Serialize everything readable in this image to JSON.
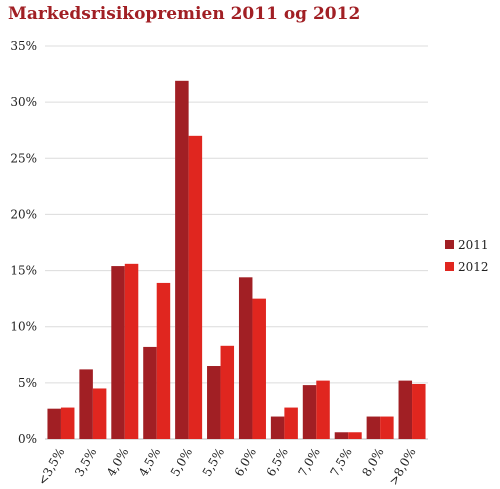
{
  "chart_data": {
    "type": "bar",
    "title": "Markedsrisikopremien 2011 og 2012",
    "xlabel": "",
    "ylabel": "",
    "categories": [
      "<3,5%",
      "3,5%",
      "4,0%",
      "4,5%",
      "5,0%",
      "5,5%",
      "6,0%",
      "6,5%",
      "7,0%",
      "7,5%",
      "8,0%",
      ">8,0%"
    ],
    "series": [
      {
        "name": "2011",
        "color": "#a11f24",
        "values": [
          2.7,
          6.2,
          15.4,
          8.2,
          31.9,
          6.5,
          14.4,
          2.0,
          4.8,
          0.6,
          2.0,
          5.2
        ]
      },
      {
        "name": "2012",
        "color": "#e0261f",
        "values": [
          2.8,
          4.5,
          15.6,
          13.9,
          27.0,
          8.3,
          12.5,
          2.8,
          5.2,
          0.6,
          2.0,
          4.9
        ]
      }
    ],
    "ylim": [
      0,
      35
    ],
    "yticks": [
      "0%",
      "5%",
      "10%",
      "15%",
      "20%",
      "25%",
      "30%",
      "35%"
    ],
    "grid": true,
    "legend_position": "right"
  }
}
